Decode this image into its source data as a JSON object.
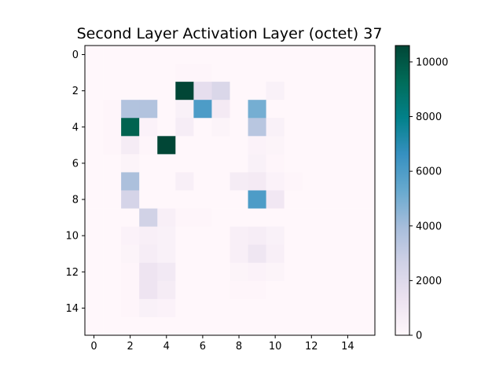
{
  "chart_data": {
    "type": "heatmap",
    "title": "Second Layer Activation Layer (octet) 37",
    "xlabel": "",
    "ylabel": "",
    "rows": 16,
    "cols": 16,
    "x_ticks": [
      0,
      2,
      4,
      6,
      8,
      10,
      12,
      14
    ],
    "y_ticks": [
      0,
      2,
      4,
      6,
      8,
      10,
      12,
      14
    ],
    "x_tick_labels": [
      "0",
      "2",
      "4",
      "6",
      "8",
      "10",
      "12",
      "14"
    ],
    "y_tick_labels": [
      "0",
      "2",
      "4",
      "6",
      "8",
      "10",
      "12",
      "14"
    ],
    "colormap": "PuBuGn",
    "vmin": 0,
    "vmax": 10600,
    "colorbar_ticks": [
      0,
      2000,
      4000,
      6000,
      8000,
      10000
    ],
    "colorbar_tick_labels": [
      "0",
      "2000",
      "4000",
      "6000",
      "8000",
      "10000"
    ],
    "grid": false,
    "values": [
      [
        0,
        0,
        0,
        0,
        0,
        0,
        0,
        0,
        0,
        0,
        0,
        0,
        0,
        0,
        0,
        0
      ],
      [
        0,
        0,
        0,
        0,
        0,
        100,
        100,
        0,
        0,
        0,
        0,
        0,
        0,
        0,
        0,
        0
      ],
      [
        0,
        0,
        0,
        0,
        0,
        10600,
        1600,
        2200,
        0,
        0,
        400,
        0,
        0,
        0,
        0,
        0
      ],
      [
        0,
        100,
        3600,
        3600,
        0,
        400,
        6000,
        800,
        0,
        5000,
        0,
        0,
        0,
        0,
        0,
        0
      ],
      [
        0,
        100,
        9600,
        300,
        0,
        600,
        0,
        200,
        0,
        3400,
        400,
        0,
        0,
        0,
        0,
        0
      ],
      [
        0,
        100,
        700,
        100,
        10600,
        0,
        0,
        0,
        0,
        300,
        200,
        0,
        0,
        0,
        0,
        0
      ],
      [
        0,
        0,
        200,
        0,
        0,
        0,
        0,
        0,
        0,
        400,
        100,
        0,
        0,
        0,
        0,
        0
      ],
      [
        0,
        0,
        3800,
        0,
        0,
        500,
        0,
        0,
        700,
        800,
        300,
        100,
        0,
        0,
        0,
        0
      ],
      [
        0,
        0,
        2400,
        0,
        0,
        0,
        0,
        0,
        0,
        6000,
        1000,
        0,
        0,
        0,
        0,
        0
      ],
      [
        0,
        0,
        0,
        2600,
        500,
        100,
        100,
        0,
        0,
        0,
        0,
        0,
        0,
        0,
        0,
        0
      ],
      [
        0,
        0,
        300,
        500,
        400,
        0,
        0,
        0,
        500,
        600,
        400,
        0,
        0,
        0,
        0,
        0
      ],
      [
        0,
        0,
        200,
        600,
        400,
        0,
        0,
        0,
        500,
        1100,
        500,
        0,
        0,
        0,
        0,
        0
      ],
      [
        0,
        0,
        100,
        1200,
        900,
        0,
        0,
        0,
        200,
        300,
        200,
        0,
        0,
        0,
        0,
        0
      ],
      [
        0,
        0,
        100,
        1200,
        700,
        0,
        0,
        0,
        100,
        100,
        0,
        0,
        0,
        0,
        0,
        0
      ],
      [
        0,
        0,
        100,
        400,
        300,
        0,
        0,
        0,
        0,
        0,
        0,
        0,
        0,
        0,
        0,
        0
      ],
      [
        0,
        0,
        0,
        0,
        0,
        0,
        0,
        0,
        0,
        0,
        0,
        0,
        0,
        0,
        0,
        0
      ]
    ]
  }
}
